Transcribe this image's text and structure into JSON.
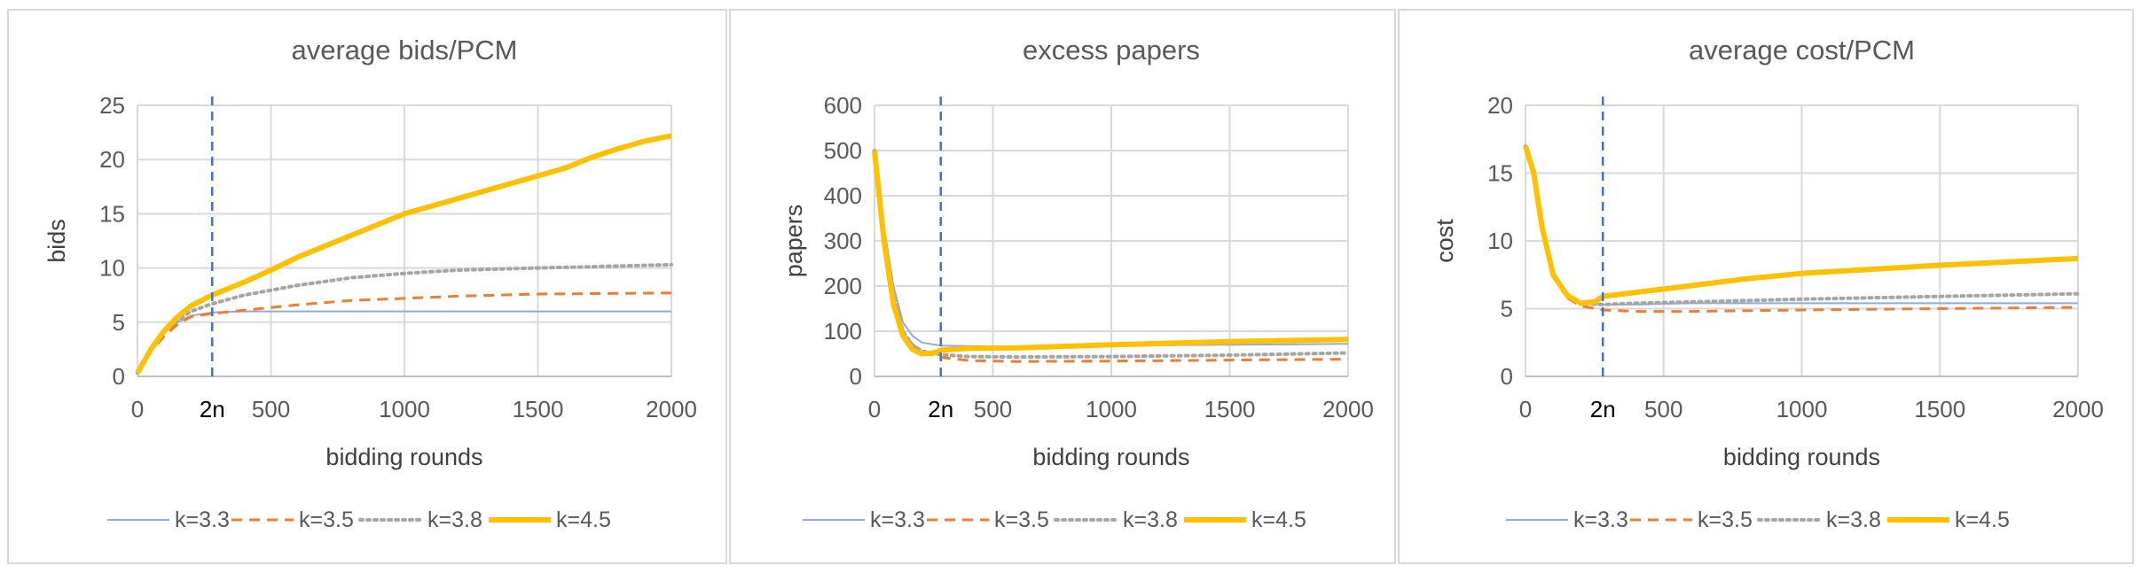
{
  "chart_data": [
    {
      "type": "line",
      "title": "average bids/PCM",
      "xlabel": "bidding rounds",
      "ylabel": "bids",
      "xlim": [
        0,
        2000
      ],
      "ylim": [
        0,
        25
      ],
      "xticks": [
        0,
        500,
        1000,
        1500,
        2000
      ],
      "yticks": [
        0,
        5,
        10,
        15,
        20,
        25
      ],
      "grid": true,
      "legend": "bottom",
      "marker_line": {
        "x": 280,
        "label": "2n",
        "color": "#4472C4"
      },
      "series": [
        {
          "name": "k=3.3",
          "color": "#8FAADC",
          "dash": "solid",
          "width": 2,
          "points": [
            [
              0,
              0.3
            ],
            [
              50,
              2.5
            ],
            [
              100,
              4
            ],
            [
              150,
              5
            ],
            [
              200,
              5.6
            ],
            [
              280,
              5.9
            ],
            [
              400,
              6.0
            ],
            [
              600,
              6.0
            ],
            [
              1000,
              6.0
            ],
            [
              1500,
              6.0
            ],
            [
              2000,
              6.0
            ]
          ]
        },
        {
          "name": "k=3.5",
          "color": "#ED7D31",
          "dash": "dashed",
          "width": 3,
          "points": [
            [
              0,
              0.3
            ],
            [
              50,
              2.3
            ],
            [
              100,
              3.7
            ],
            [
              150,
              4.8
            ],
            [
              200,
              5.5
            ],
            [
              280,
              5.8
            ],
            [
              400,
              6.1
            ],
            [
              600,
              6.6
            ],
            [
              800,
              7.0
            ],
            [
              1000,
              7.2
            ],
            [
              1200,
              7.4
            ],
            [
              1500,
              7.6
            ],
            [
              2000,
              7.7
            ]
          ]
        },
        {
          "name": "k=3.8",
          "color": "#A5A5A5",
          "dash": "dotted",
          "width": 4,
          "points": [
            [
              0,
              0.3
            ],
            [
              50,
              2.5
            ],
            [
              100,
              4.1
            ],
            [
              150,
              5.2
            ],
            [
              200,
              6.0
            ],
            [
              280,
              6.7
            ],
            [
              400,
              7.5
            ],
            [
              600,
              8.4
            ],
            [
              800,
              9.1
            ],
            [
              1000,
              9.5
            ],
            [
              1200,
              9.8
            ],
            [
              1500,
              10.0
            ],
            [
              2000,
              10.3
            ]
          ]
        },
        {
          "name": "k=4.5",
          "color": "#FFC000",
          "dash": "solid",
          "width": 6,
          "points": [
            [
              0,
              0.3
            ],
            [
              50,
              2.5
            ],
            [
              100,
              4.2
            ],
            [
              150,
              5.5
            ],
            [
              200,
              6.5
            ],
            [
              280,
              7.5
            ],
            [
              400,
              8.7
            ],
            [
              500,
              9.8
            ],
            [
              600,
              11
            ],
            [
              800,
              13
            ],
            [
              1000,
              15
            ],
            [
              1200,
              16.4
            ],
            [
              1400,
              17.8
            ],
            [
              1600,
              19.2
            ],
            [
              1700,
              20.2
            ],
            [
              1800,
              21
            ],
            [
              1900,
              21.7
            ],
            [
              2000,
              22.2
            ]
          ]
        }
      ]
    },
    {
      "type": "line",
      "title": "excess papers",
      "xlabel": "bidding rounds",
      "ylabel": "papers",
      "xlim": [
        0,
        2000
      ],
      "ylim": [
        0,
        600
      ],
      "xticks": [
        0,
        500,
        1000,
        1500,
        2000
      ],
      "yticks": [
        0,
        100,
        200,
        300,
        400,
        500,
        600
      ],
      "grid": true,
      "legend": "bottom",
      "marker_line": {
        "x": 280,
        "label": "2n",
        "color": "#4472C4"
      },
      "series": [
        {
          "name": "k=3.3",
          "color": "#8FAADC",
          "dash": "solid",
          "width": 2,
          "points": [
            [
              0,
              500
            ],
            [
              40,
              330
            ],
            [
              80,
              200
            ],
            [
              120,
              120
            ],
            [
              160,
              90
            ],
            [
              200,
              75
            ],
            [
              280,
              68
            ],
            [
              400,
              67
            ],
            [
              600,
              66
            ],
            [
              1000,
              68
            ],
            [
              1500,
              70
            ],
            [
              2000,
              72
            ]
          ]
        },
        {
          "name": "k=3.5",
          "color": "#ED7D31",
          "dash": "dashed",
          "width": 3,
          "points": [
            [
              0,
              500
            ],
            [
              40,
              320
            ],
            [
              80,
              180
            ],
            [
              120,
              100
            ],
            [
              160,
              70
            ],
            [
              200,
              55
            ],
            [
              280,
              42
            ],
            [
              400,
              35
            ],
            [
              600,
              33
            ],
            [
              1000,
              34
            ],
            [
              1500,
              36
            ],
            [
              2000,
              38
            ]
          ]
        },
        {
          "name": "k=3.8",
          "color": "#A5A5A5",
          "dash": "dotted",
          "width": 4,
          "points": [
            [
              0,
              500
            ],
            [
              40,
              320
            ],
            [
              80,
              180
            ],
            [
              120,
              100
            ],
            [
              160,
              70
            ],
            [
              200,
              56
            ],
            [
              280,
              48
            ],
            [
              400,
              44
            ],
            [
              600,
              43
            ],
            [
              1000,
              44
            ],
            [
              1500,
              47
            ],
            [
              2000,
              52
            ]
          ]
        },
        {
          "name": "k=4.5",
          "color": "#FFC000",
          "dash": "solid",
          "width": 6,
          "points": [
            [
              0,
              500
            ],
            [
              40,
              300
            ],
            [
              80,
              160
            ],
            [
              120,
              90
            ],
            [
              160,
              60
            ],
            [
              200,
              50
            ],
            [
              250,
              52
            ],
            [
              280,
              58
            ],
            [
              400,
              62
            ],
            [
              600,
              63
            ],
            [
              1000,
              70
            ],
            [
              1500,
              77
            ],
            [
              2000,
              82
            ]
          ]
        }
      ]
    },
    {
      "type": "line",
      "title": "average cost/PCM",
      "xlabel": "bidding rounds",
      "ylabel": "cost",
      "xlim": [
        0,
        2000
      ],
      "ylim": [
        0,
        20
      ],
      "xticks": [
        0,
        500,
        1000,
        1500,
        2000
      ],
      "yticks": [
        0,
        5,
        10,
        15,
        20
      ],
      "grid": true,
      "legend": "bottom",
      "marker_line": {
        "x": 280,
        "label": "2n",
        "color": "#4472C4"
      },
      "series": [
        {
          "name": "k=3.3",
          "color": "#8FAADC",
          "dash": "solid",
          "width": 2,
          "points": [
            [
              0,
              17
            ],
            [
              30,
              15
            ],
            [
              60,
              11
            ],
            [
              100,
              7.5
            ],
            [
              150,
              6
            ],
            [
              200,
              5.4
            ],
            [
              280,
              5.3
            ],
            [
              400,
              5.3
            ],
            [
              600,
              5.4
            ],
            [
              1000,
              5.4
            ],
            [
              1500,
              5.4
            ],
            [
              2000,
              5.4
            ]
          ]
        },
        {
          "name": "k=3.5",
          "color": "#ED7D31",
          "dash": "dashed",
          "width": 3,
          "points": [
            [
              0,
              17
            ],
            [
              30,
              15
            ],
            [
              60,
              11
            ],
            [
              100,
              7.4
            ],
            [
              150,
              5.8
            ],
            [
              200,
              5.2
            ],
            [
              280,
              4.9
            ],
            [
              400,
              4.8
            ],
            [
              600,
              4.8
            ],
            [
              1000,
              4.9
            ],
            [
              1500,
              5.0
            ],
            [
              2000,
              5.1
            ]
          ]
        },
        {
          "name": "k=3.8",
          "color": "#A5A5A5",
          "dash": "dotted",
          "width": 4,
          "points": [
            [
              0,
              17
            ],
            [
              30,
              15
            ],
            [
              60,
              11
            ],
            [
              100,
              7.5
            ],
            [
              150,
              6
            ],
            [
              200,
              5.4
            ],
            [
              280,
              5.3
            ],
            [
              400,
              5.4
            ],
            [
              600,
              5.5
            ],
            [
              1000,
              5.7
            ],
            [
              1500,
              5.9
            ],
            [
              2000,
              6.1
            ]
          ]
        },
        {
          "name": "k=4.5",
          "color": "#FFC000",
          "dash": "solid",
          "width": 6,
          "points": [
            [
              0,
              17
            ],
            [
              30,
              15
            ],
            [
              60,
              11
            ],
            [
              100,
              7.5
            ],
            [
              150,
              6
            ],
            [
              200,
              5.4
            ],
            [
              250,
              5.5
            ],
            [
              280,
              5.9
            ],
            [
              400,
              6.2
            ],
            [
              600,
              6.7
            ],
            [
              800,
              7.2
            ],
            [
              1000,
              7.6
            ],
            [
              1500,
              8.2
            ],
            [
              2000,
              8.7
            ]
          ]
        }
      ]
    }
  ]
}
